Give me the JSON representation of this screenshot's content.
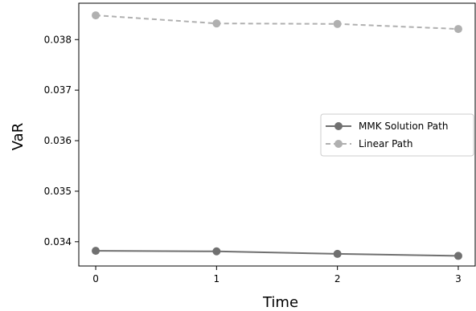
{
  "chart_data": {
    "type": "line",
    "x": [
      0,
      1,
      2,
      3
    ],
    "series": [
      {
        "name": "MMK Solution Path",
        "values": [
          0.03382,
          0.03381,
          0.03376,
          0.03372
        ],
        "color": "#707070",
        "dash": "solid"
      },
      {
        "name": "Linear Path",
        "values": [
          0.03848,
          0.03832,
          0.03831,
          0.03821
        ],
        "color": "#b0b0b0",
        "dash": "dashed"
      }
    ],
    "xlabel": "Time",
    "ylabel": "VaR",
    "xticks": [
      "0",
      "1",
      "2",
      "3"
    ],
    "yticks": [
      "0.034",
      "0.035",
      "0.036",
      "0.037",
      "0.038"
    ],
    "ytick_values": [
      0.034,
      0.035,
      0.036,
      0.037,
      0.038
    ],
    "xlim": [
      -0.14,
      3.14
    ],
    "ylim": [
      0.03352,
      0.03872
    ],
    "grid": false,
    "legend_position": "center-right"
  }
}
